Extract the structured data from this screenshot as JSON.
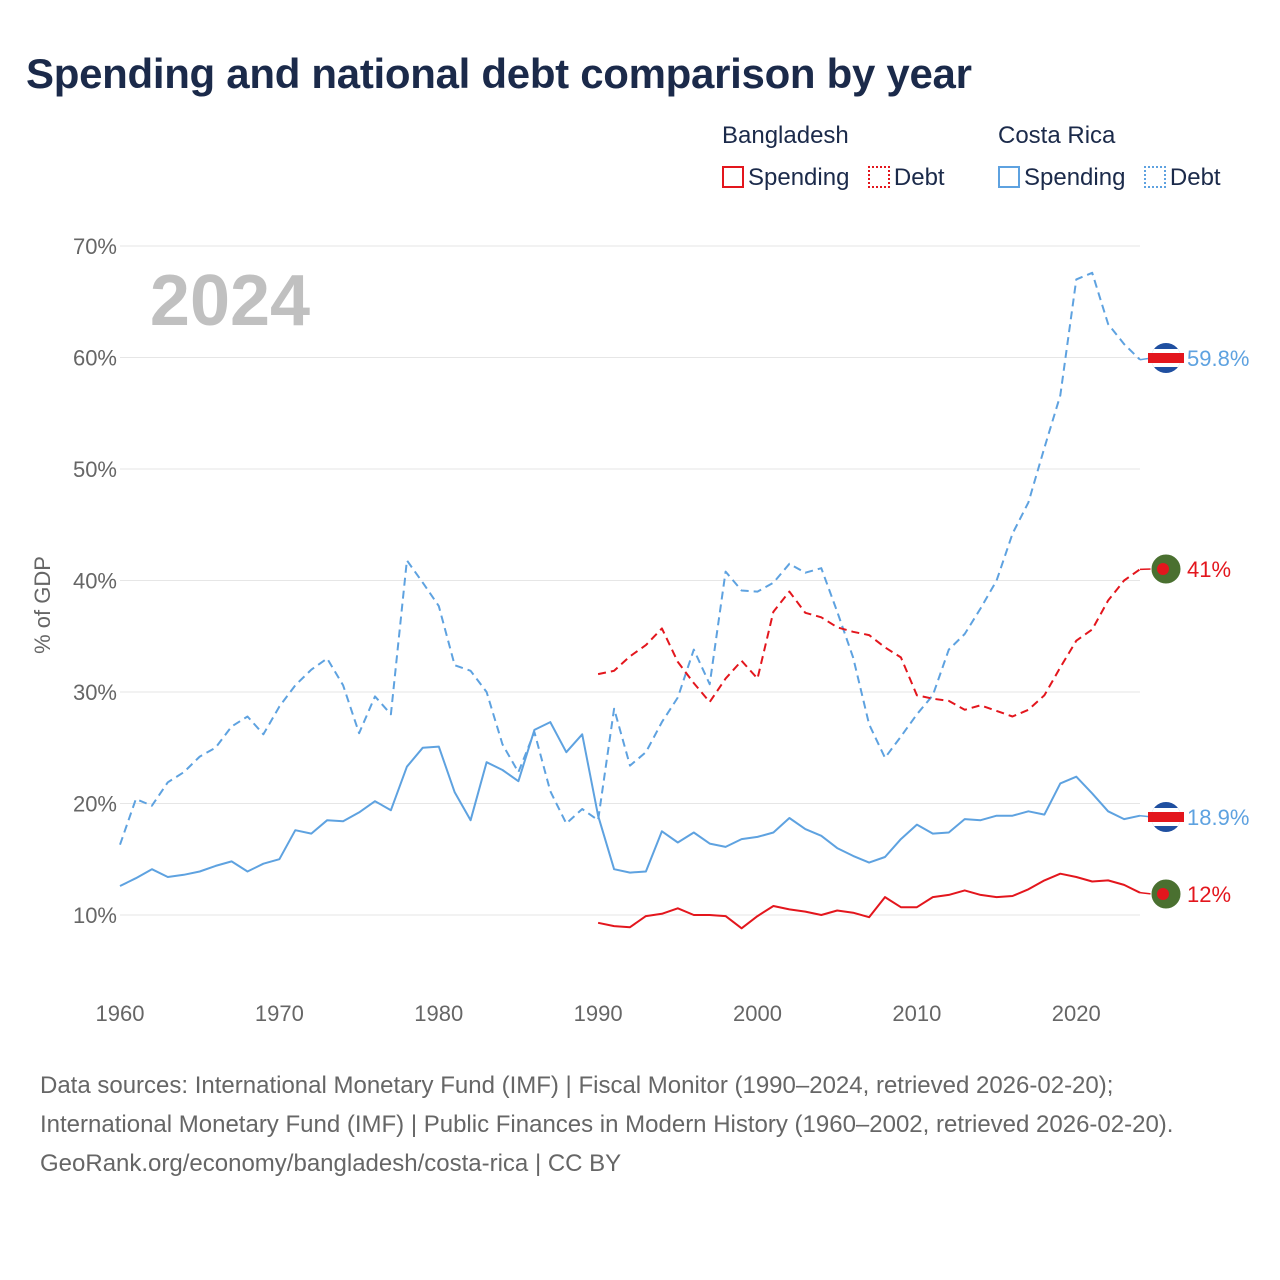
{
  "title": "Spending and national debt comparison by year",
  "year_label": "2024",
  "legend": {
    "groups": [
      {
        "name": "Bangladesh",
        "color": "#e3161d",
        "items": [
          {
            "label": "Spending",
            "style": "solid"
          },
          {
            "label": "Debt",
            "style": "dotted"
          }
        ]
      },
      {
        "name": "Costa Rica",
        "color": "#5ea2e0",
        "items": [
          {
            "label": "Spending",
            "style": "solid"
          },
          {
            "label": "Debt",
            "style": "dotted"
          }
        ]
      }
    ]
  },
  "sources": {
    "line1": "Data sources: International Monetary Fund (IMF) | Fiscal Monitor (1990–2024, retrieved 2026-02-20); International Monetary Fund (IMF) | Public Finances in Modern History (1960–2002, retrieved 2026-02-20).",
    "line2": "GeoRank.org/economy/bangladesh/costa-rica | CC BY"
  },
  "colors": {
    "bangladesh": "#e3161d",
    "costa_rica": "#5ea2e0",
    "grid": "#e6e6e6",
    "axis_text": "#666666",
    "year_label": "#c0c0c0"
  },
  "icons": {
    "bangladesh": "bangladesh-flag-icon",
    "costa_rica": "costa-rica-flag-icon"
  },
  "chart_data": {
    "type": "line",
    "title": "Spending and national debt comparison by year",
    "xlabel": "",
    "ylabel": "% of GDP",
    "xlim": [
      1960,
      2024
    ],
    "ylim": [
      3,
      70
    ],
    "x_ticks": [
      1960,
      1970,
      1980,
      1990,
      2000,
      2010,
      2020
    ],
    "y_ticks": [
      10,
      20,
      30,
      40,
      50,
      60,
      70
    ],
    "y_tick_labels": [
      "10%",
      "20%",
      "30%",
      "40%",
      "50%",
      "60%",
      "70%"
    ],
    "grid": true,
    "series": [
      {
        "key": "cr_debt",
        "name": "Costa Rica Debt",
        "country": "Costa Rica",
        "color": "#5ea2e0",
        "dash": true,
        "end_label": "59.8%",
        "x_start": 1960,
        "values": [
          16.3,
          20.4,
          19.8,
          21.9,
          22.8,
          24.2,
          25.0,
          26.9,
          27.8,
          26.2,
          28.7,
          30.6,
          32.0,
          33.0,
          30.6,
          26.3,
          29.6,
          28.0,
          41.8,
          39.8,
          37.7,
          32.4,
          31.9,
          30.0,
          25.3,
          22.8,
          26.4,
          21.1,
          18.2,
          19.5,
          18.5,
          28.5,
          23.4,
          24.6,
          27.3,
          29.5,
          33.8,
          30.7,
          40.8,
          39.1,
          39.0,
          39.8,
          41.5,
          40.7,
          41.1,
          37.2,
          33.1,
          27.1,
          24.1,
          26.0,
          28.0,
          29.7,
          33.8,
          35.2,
          37.5,
          40.0,
          44.2,
          47.0,
          51.9,
          56.6,
          67.0,
          67.6,
          63.0,
          61.2,
          59.8
        ]
      },
      {
        "key": "cr_spending",
        "name": "Costa Rica Spending",
        "country": "Costa Rica",
        "color": "#5ea2e0",
        "dash": false,
        "end_label": "18.9%",
        "x_start": 1960,
        "values": [
          12.6,
          13.3,
          14.1,
          13.4,
          13.6,
          13.9,
          14.4,
          14.8,
          13.9,
          14.6,
          15.0,
          17.6,
          17.3,
          18.5,
          18.4,
          19.2,
          20.2,
          19.4,
          23.3,
          25.0,
          25.1,
          21.0,
          18.5,
          23.7,
          23.0,
          22.0,
          26.6,
          27.3,
          24.6,
          26.2,
          18.9,
          14.1,
          13.8,
          13.9,
          17.5,
          16.5,
          17.4,
          16.4,
          16.1,
          16.8,
          17.0,
          17.4,
          18.7,
          17.7,
          17.1,
          16.0,
          15.3,
          14.7,
          15.2,
          16.8,
          18.1,
          17.3,
          17.4,
          18.6,
          18.5,
          18.9,
          18.9,
          19.3,
          19.0,
          21.8,
          22.4,
          20.9,
          19.3,
          18.6,
          18.9
        ]
      },
      {
        "key": "bd_debt",
        "name": "Bangladesh Debt",
        "country": "Bangladesh",
        "color": "#e3161d",
        "dash": true,
        "end_label": "41%",
        "x_start": 1990,
        "values": [
          31.6,
          31.9,
          33.2,
          34.2,
          35.7,
          32.7,
          30.8,
          29.1,
          31.2,
          32.8,
          31.2,
          37.2,
          39.0,
          37.1,
          36.7,
          35.8,
          35.4,
          35.1,
          34.0,
          33.1,
          29.7,
          29.4,
          29.2,
          28.4,
          28.8,
          28.3,
          27.8,
          28.4,
          29.7,
          32.2,
          34.6,
          35.6,
          38.2,
          40.0,
          41.0
        ]
      },
      {
        "key": "bd_spending",
        "name": "Bangladesh Spending",
        "country": "Bangladesh",
        "color": "#e3161d",
        "dash": false,
        "end_label": "12%",
        "x_start": 1990,
        "values": [
          9.3,
          9.0,
          8.9,
          9.9,
          10.1,
          10.6,
          10.0,
          10.0,
          9.9,
          8.8,
          9.9,
          10.8,
          10.5,
          10.3,
          10.0,
          10.4,
          10.2,
          9.8,
          11.6,
          10.7,
          10.7,
          11.6,
          11.8,
          12.2,
          11.8,
          11.6,
          11.7,
          12.3,
          13.1,
          13.7,
          13.4,
          13.0,
          13.1,
          12.7,
          12.0
        ]
      }
    ]
  }
}
